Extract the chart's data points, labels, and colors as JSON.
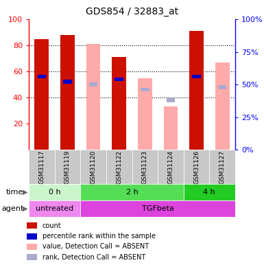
{
  "title": "GDS854 / 32883_at",
  "samples": [
    "GSM31117",
    "GSM31119",
    "GSM31120",
    "GSM31122",
    "GSM31123",
    "GSM31124",
    "GSM31126",
    "GSM31127"
  ],
  "bar_data": [
    {
      "count": 85,
      "rank": 56,
      "absent_value": null,
      "absent_rank": null
    },
    {
      "count": 88,
      "rank": 52,
      "absent_value": null,
      "absent_rank": null
    },
    {
      "count": null,
      "rank": null,
      "absent_value": 81,
      "absent_rank": 50
    },
    {
      "count": 71,
      "rank": 54,
      "absent_value": null,
      "absent_rank": null
    },
    {
      "count": null,
      "rank": null,
      "absent_value": 55,
      "absent_rank": 46
    },
    {
      "count": null,
      "rank": null,
      "absent_value": 33,
      "absent_rank": 38
    },
    {
      "count": 91,
      "rank": 56,
      "absent_value": null,
      "absent_rank": null
    },
    {
      "count": null,
      "rank": null,
      "absent_value": 67,
      "absent_rank": 48
    }
  ],
  "time_groups": [
    {
      "label": "0 h",
      "start": 0,
      "end": 2,
      "color": "#ccf5cc"
    },
    {
      "label": "2 h",
      "start": 2,
      "end": 6,
      "color": "#55dd55"
    },
    {
      "label": "4 h",
      "start": 6,
      "end": 8,
      "color": "#22cc22"
    }
  ],
  "agent_groups": [
    {
      "label": "untreated",
      "start": 0,
      "end": 2,
      "color": "#ee88ee"
    },
    {
      "label": "TGFbeta",
      "start": 2,
      "end": 8,
      "color": "#dd44dd"
    }
  ],
  "ylim_left": [
    0,
    100
  ],
  "ylim_right": [
    0,
    100
  ],
  "yticks_left": [
    20,
    40,
    60,
    80,
    100
  ],
  "yticks_right": [
    0,
    25,
    50,
    75,
    100
  ],
  "color_count": "#cc1100",
  "color_rank": "#0000cc",
  "color_absent_value": "#ffaaaa",
  "color_absent_rank": "#aaaacc",
  "bar_width": 0.55,
  "legend_items": [
    {
      "color": "#cc1100",
      "label": "count"
    },
    {
      "color": "#0000cc",
      "label": "percentile rank within the sample"
    },
    {
      "color": "#ffaaaa",
      "label": "value, Detection Call = ABSENT"
    },
    {
      "color": "#aaaacc",
      "label": "rank, Detection Call = ABSENT"
    }
  ]
}
